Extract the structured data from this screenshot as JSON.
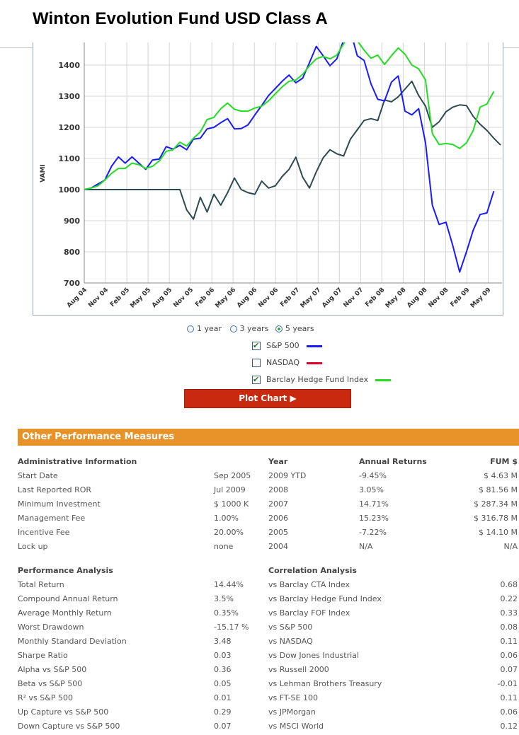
{
  "page": {
    "title": "Winton Evolution Fund USD Class A"
  },
  "colors": {
    "sp500": "#1a1aff",
    "nasdaq": "#e0002a",
    "barclay": "#22dd22",
    "fund": "#2c4a52",
    "accent": "#e8932a",
    "button": "#c8290f"
  },
  "chart_data": {
    "type": "line",
    "title": "",
    "xlabel": "",
    "ylabel": "VAMI",
    "ylim": [
      700,
      1500
    ],
    "yticks": [
      700,
      800,
      900,
      1000,
      1100,
      1200,
      1300,
      1400
    ],
    "xticks": [
      "Aug 04",
      "Nov 04",
      "Feb 05",
      "May 05",
      "Aug 05",
      "Nov 05",
      "Feb 06",
      "May 06",
      "Aug 06",
      "Nov 06",
      "Feb 07",
      "May 07",
      "Aug 07",
      "Nov 07",
      "Feb 08",
      "May 08",
      "Aug 08",
      "Nov 08",
      "Feb 09",
      "May 09"
    ],
    "series": [
      {
        "name": "Winton Evolution Fund",
        "color": "#2c4a52",
        "values": [
          1000,
          1000,
          1000,
          1000,
          1000,
          1000,
          1000,
          1000,
          1000,
          1000,
          1000,
          1000,
          1000,
          1000,
          1000,
          935,
          905,
          975,
          928,
          985,
          950,
          990,
          1037,
          1000,
          990,
          985,
          1027,
          1005,
          1012,
          1042,
          1065,
          1104,
          1040,
          1005,
          1057,
          1102,
          1128,
          1115,
          1108,
          1162,
          1192,
          1222,
          1228,
          1222,
          1288,
          1282,
          1298,
          1323,
          1348,
          1302,
          1268,
          1200,
          1218,
          1250,
          1265,
          1272,
          1270,
          1235,
          1210,
          1190,
          1165,
          1143
        ]
      },
      {
        "name": "S&P 500",
        "color": "#1a1aff",
        "values": [
          1000,
          1005,
          1018,
          1030,
          1075,
          1105,
          1085,
          1105,
          1085,
          1065,
          1095,
          1098,
          1138,
          1130,
          1142,
          1128,
          1162,
          1165,
          1195,
          1200,
          1215,
          1228,
          1195,
          1196,
          1208,
          1240,
          1270,
          1302,
          1325,
          1348,
          1368,
          1343,
          1358,
          1408,
          1460,
          1430,
          1398,
          1420,
          1480,
          1510,
          1430,
          1415,
          1340,
          1290,
          1285,
          1345,
          1365,
          1252,
          1240,
          1260,
          1150,
          950,
          888,
          895,
          820,
          735,
          800,
          870,
          920,
          925,
          995
        ]
      },
      {
        "name": "Barclay Hedge Fund Index",
        "color": "#22dd22",
        "values": [
          1000,
          1005,
          1012,
          1030,
          1052,
          1068,
          1068,
          1085,
          1080,
          1068,
          1075,
          1092,
          1123,
          1128,
          1152,
          1140,
          1165,
          1185,
          1225,
          1232,
          1260,
          1278,
          1258,
          1252,
          1252,
          1262,
          1268,
          1285,
          1308,
          1330,
          1348,
          1352,
          1370,
          1398,
          1420,
          1428,
          1420,
          1432,
          1468,
          1502,
          1478,
          1448,
          1422,
          1432,
          1402,
          1430,
          1455,
          1435,
          1400,
          1388,
          1352,
          1180,
          1145,
          1148,
          1145,
          1132,
          1150,
          1190,
          1265,
          1275,
          1315
        ]
      }
    ]
  },
  "period": {
    "opt1": "1 year",
    "opt2": "3 years",
    "opt3": "5 years"
  },
  "legend": {
    "sp500": "S&P 500",
    "nasdaq": "NASDAQ",
    "barclay": "Barclay Hedge Fund Index"
  },
  "button": {
    "plot": "Plot Chart ▶"
  },
  "section": {
    "title": "Other Performance Measures"
  },
  "admin": {
    "header": "Administrative Information",
    "rows": [
      {
        "label": "Start Date",
        "value": "Sep 2005"
      },
      {
        "label": "Last Reported ROR",
        "value": "Jul 2009"
      },
      {
        "label": "Minimum Investment",
        "value": "$ 1000 K"
      },
      {
        "label": "Management Fee",
        "value": "1.00%"
      },
      {
        "label": "Incentive Fee",
        "value": "20.00%"
      },
      {
        "label": "Lock up",
        "value": "none"
      }
    ]
  },
  "annual": {
    "h_year": "Year",
    "h_returns": "Annual Returns",
    "h_fum": "FUM $",
    "rows": [
      {
        "year": "2009 YTD",
        "ret": "-9.45%",
        "fum": "$ 4.63 M"
      },
      {
        "year": "2008",
        "ret": "3.05%",
        "fum": "$ 81.56 M"
      },
      {
        "year": "2007",
        "ret": "14.71%",
        "fum": "$ 287.34 M"
      },
      {
        "year": "2006",
        "ret": "15.23%",
        "fum": "$ 316.78 M"
      },
      {
        "year": "2005",
        "ret": "-7.22%",
        "fum": "$ 14.10 M"
      },
      {
        "year": "2004",
        "ret": "N/A",
        "fum": "N/A"
      }
    ]
  },
  "perf": {
    "header": "Performance Analysis",
    "rows": [
      {
        "label": "Total Return",
        "value": "14.44%"
      },
      {
        "label": "Compound Annual Return",
        "value": "3.5%"
      },
      {
        "label": "Average Monthly Return",
        "value": "0.35%"
      },
      {
        "label": "Worst Drawdown",
        "value": "-15.17 %"
      },
      {
        "label": "Monthly Standard Deviation",
        "value": "3.48"
      },
      {
        "label": "Sharpe Ratio",
        "value": "0.03"
      },
      {
        "label": "Alpha vs S&P 500",
        "value": "0.36"
      },
      {
        "label": "Beta vs S&P 500",
        "value": "0.05"
      },
      {
        "label": "R² vs S&P 500",
        "value": "0.01"
      },
      {
        "label": "Up Capture vs S&P 500",
        "value": "0.29"
      },
      {
        "label": "Down Capture vs S&P 500",
        "value": "0.07"
      }
    ]
  },
  "corr": {
    "header": "Correlation Analysis",
    "rows": [
      {
        "label": "vs Barclay CTA Index",
        "value": "0.68"
      },
      {
        "label": "vs Barclay Hedge Fund Index",
        "value": "0.22"
      },
      {
        "label": "vs Barclay FOF Index",
        "value": "0.33"
      },
      {
        "label": "vs S&P 500",
        "value": "0.08"
      },
      {
        "label": "vs NASDAQ",
        "value": "0.11"
      },
      {
        "label": "vs Dow Jones Industrial",
        "value": "0.06"
      },
      {
        "label": "vs Russell 2000",
        "value": "0.07"
      },
      {
        "label": "vs Lehman Brothers Treasury",
        "value": "-0.01"
      },
      {
        "label": "vs FT-SE 100",
        "value": "0.11"
      },
      {
        "label": "vs JPMorgan",
        "value": "0.06"
      },
      {
        "label": "vs MSCI World",
        "value": "0.12"
      }
    ]
  }
}
